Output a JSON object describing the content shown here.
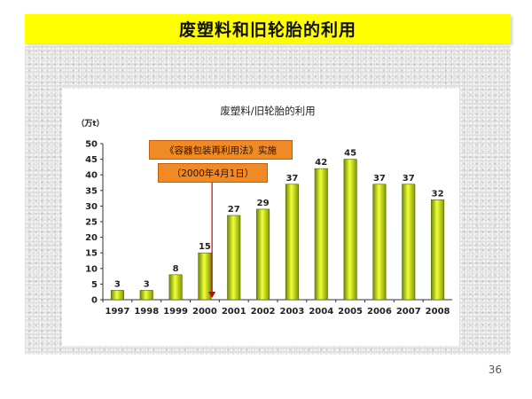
{
  "slide": {
    "title": "废塑料和旧轮胎的利用",
    "page_number": "36"
  },
  "chart_data": {
    "type": "bar",
    "title": "废塑料/旧轮胎的利用",
    "ylabel": "（万t）",
    "xlabel": "",
    "categories": [
      "1997",
      "1998",
      "1999",
      "2000",
      "2001",
      "2002",
      "2003",
      "2004",
      "2005",
      "2006",
      "2007",
      "2008"
    ],
    "values": [
      3,
      3,
      8,
      15,
      27,
      29,
      37,
      42,
      45,
      37,
      37,
      32
    ],
    "ylim": [
      0,
      50
    ],
    "yticks": [
      0,
      5,
      10,
      15,
      20,
      25,
      30,
      35,
      40,
      45,
      50
    ],
    "grid": false,
    "legend": "none",
    "bar_color": "#c8e600",
    "annotations": [
      {
        "text": "《容器包装再利用法》实施",
        "color": "#f08a24"
      },
      {
        "text": "（2000年4月1日）",
        "color": "#f08a24"
      }
    ],
    "marker_color": "#cc0000"
  }
}
